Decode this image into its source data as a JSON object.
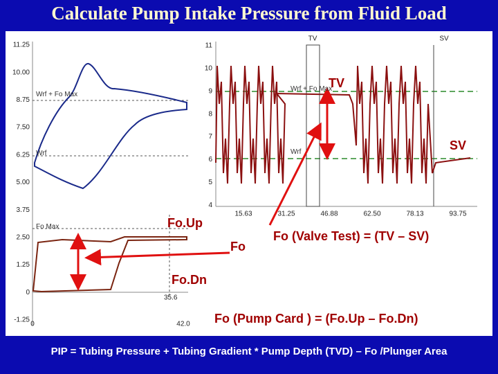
{
  "header": {
    "title": "Calculate Pump Intake Pressure from Fluid Load"
  },
  "pump_card": {
    "yticks": [
      "11.25",
      "10.00",
      "8.75",
      "7.50",
      "6.25",
      "5.00",
      "3.75",
      "2.50",
      "1.25",
      "0",
      "-1.25"
    ],
    "xticks": [
      "0",
      "42.0"
    ],
    "marker": "35.6",
    "labels": [
      "Wrf + Fo Max",
      "Wrf",
      "Fo Max"
    ]
  },
  "valve_test": {
    "yticks": [
      "11",
      "10",
      "9",
      "8",
      "7",
      "6",
      "5",
      "4"
    ],
    "xticks": [
      "15.63",
      "31.25",
      "46.88",
      "62.50",
      "78.13",
      "93.75"
    ],
    "markers": [
      "TV",
      "SV"
    ],
    "labels": [
      "Wrf + Fo Max",
      "Wrf"
    ]
  },
  "annotations": {
    "tv": "TV",
    "sv": "SV",
    "fo_up": "Fo.Up",
    "fo": "Fo",
    "fo_dn": "Fo.Dn",
    "valve_formula": "Fo (Valve Test) = (TV – SV)",
    "card_formula": "Fo (Pump Card ) = (Fo.Up – Fo.Dn)"
  },
  "footer": {
    "formula": "PIP = Tubing Pressure + Tubing Gradient * Pump Depth (TVD) – Fo /Plunger Area"
  }
}
